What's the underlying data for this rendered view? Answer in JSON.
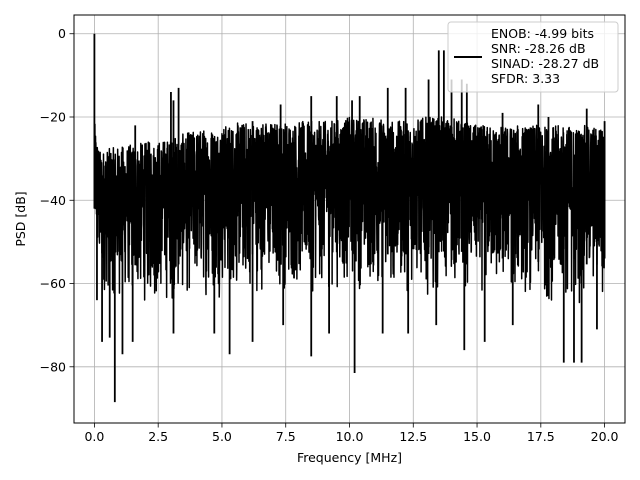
{
  "chart_data": {
    "type": "line",
    "xlabel": "Frequency [MHz]",
    "ylabel": "PSD [dB]",
    "xlim": [
      -0.8,
      20.8
    ],
    "ylim": [
      -93.5,
      4.5
    ],
    "xticks": [
      0.0,
      2.5,
      5.0,
      7.5,
      10.0,
      12.5,
      15.0,
      17.5,
      20.0
    ],
    "xtick_labels": [
      "0.0",
      "2.5",
      "5.0",
      "7.5",
      "10.0",
      "12.5",
      "15.0",
      "17.5",
      "20.0"
    ],
    "yticks": [
      0,
      -20,
      -40,
      -60,
      -80
    ],
    "ytick_labels": [
      "0",
      "−20",
      "−40",
      "−60",
      "−80"
    ],
    "grid": true,
    "legend_position": "top-right",
    "series": [
      {
        "name": "ENOB: -4.99 bits\nSNR: -28.26 dB\nSINAD: -28.27 dB\nSFDR: 3.33",
        "color": "#000000",
        "envelope": {
          "x": [
            0.0,
            0.2,
            1.0,
            2.0,
            3.0,
            4.0,
            5.0,
            6.0,
            7.0,
            8.0,
            9.0,
            10.0,
            11.0,
            12.0,
            13.0,
            14.0,
            15.0,
            16.0,
            17.0,
            18.0,
            19.0,
            20.0
          ],
          "upper": [
            -21,
            -28,
            -27,
            -26,
            -25,
            -23,
            -22,
            -21,
            -21,
            -21,
            -21,
            -20,
            -20,
            -21,
            -20,
            -20,
            -22,
            -22,
            -22,
            -22,
            -22,
            -22
          ],
          "lower": [
            -52,
            -63,
            -65,
            -66,
            -66,
            -64,
            -64,
            -63,
            -63,
            -63,
            -63,
            -62,
            -63,
            -63,
            -63,
            -62,
            -63,
            -64,
            -64,
            -66,
            -66,
            -64
          ]
        },
        "peaks": [
          {
            "x": 0.0,
            "y": 0
          },
          {
            "x": 1.6,
            "y": -22
          },
          {
            "x": 3.0,
            "y": -14
          },
          {
            "x": 3.1,
            "y": -16
          },
          {
            "x": 3.3,
            "y": -13
          },
          {
            "x": 6.2,
            "y": -21
          },
          {
            "x": 7.3,
            "y": -17
          },
          {
            "x": 8.5,
            "y": -15
          },
          {
            "x": 9.5,
            "y": -15
          },
          {
            "x": 10.1,
            "y": -16
          },
          {
            "x": 10.4,
            "y": -15
          },
          {
            "x": 11.5,
            "y": -13
          },
          {
            "x": 12.2,
            "y": -13
          },
          {
            "x": 13.1,
            "y": -11
          },
          {
            "x": 13.5,
            "y": -4
          },
          {
            "x": 13.7,
            "y": -4
          },
          {
            "x": 14.0,
            "y": -11
          },
          {
            "x": 14.4,
            "y": -11
          },
          {
            "x": 14.6,
            "y": -12
          },
          {
            "x": 16.0,
            "y": -19
          },
          {
            "x": 17.4,
            "y": -17
          },
          {
            "x": 17.8,
            "y": -20
          },
          {
            "x": 19.3,
            "y": -18
          },
          {
            "x": 20.0,
            "y": -21
          }
        ],
        "dips": [
          {
            "x": 0.1,
            "y": -64
          },
          {
            "x": 0.3,
            "y": -74
          },
          {
            "x": 0.6,
            "y": -73
          },
          {
            "x": 0.8,
            "y": -88.5
          },
          {
            "x": 1.1,
            "y": -77
          },
          {
            "x": 1.5,
            "y": -74
          },
          {
            "x": 3.1,
            "y": -72
          },
          {
            "x": 4.7,
            "y": -72
          },
          {
            "x": 5.3,
            "y": -77
          },
          {
            "x": 6.2,
            "y": -74
          },
          {
            "x": 7.4,
            "y": -70
          },
          {
            "x": 8.5,
            "y": -77.5
          },
          {
            "x": 9.2,
            "y": -72
          },
          {
            "x": 10.2,
            "y": -81.5
          },
          {
            "x": 11.3,
            "y": -72
          },
          {
            "x": 12.3,
            "y": -72
          },
          {
            "x": 13.4,
            "y": -70
          },
          {
            "x": 14.5,
            "y": -76
          },
          {
            "x": 15.3,
            "y": -74
          },
          {
            "x": 16.4,
            "y": -70
          },
          {
            "x": 18.4,
            "y": -79
          },
          {
            "x": 18.8,
            "y": -79
          },
          {
            "x": 19.1,
            "y": -79
          },
          {
            "x": 19.7,
            "y": -71
          }
        ]
      }
    ],
    "legend_lines": [
      "ENOB: -4.99 bits",
      "SNR: -28.26 dB",
      "SINAD: -28.27 dB",
      "SFDR: 3.33"
    ]
  }
}
